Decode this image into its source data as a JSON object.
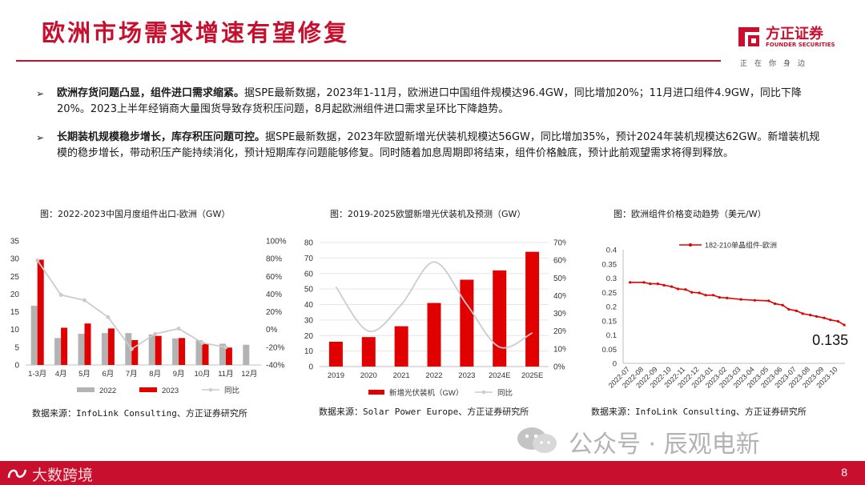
{
  "slide": {
    "title": "欧洲市场需求增速有望修复",
    "page_number": "8"
  },
  "logo": {
    "name_cn": "方正证券",
    "name_en": "FOUNDER SECURITIES",
    "slogan": "正在你身边",
    "color": "#c8102e"
  },
  "bullets": [
    {
      "lead": "欧洲存货问题凸显，组件进口需求缩紧。",
      "text": "据SPE最新数据，2023年1-11月，欧洲进口中国组件规模达96.4GW，同比增加20%；11月进口组件4.9GW，同比下降20%。2023上半年经销商大量囤货导致存货积压问题，8月起欧洲组件进口需求呈环比下降趋势。"
    },
    {
      "lead": "长期装机规模稳步增长，库存积压问题可控。",
      "text": "据SPE最新数据，2023年欧盟新增光伏装机规模达56GW，同比增加35%，预计2024年装机规模达62GW。新增装机规模的稳步增长，带动积压产能持续消化，预计短期库存问题能够修复。同时随着加息周期即将结束，组件价格触底，预计此前观望需求将得到释放。"
    }
  ],
  "charts": {
    "c1": {
      "caption": "图：2022-2023中国月度组件出口-欧洲（GW）",
      "source": "数据来源：InfoLink Consulting、方正证券研究所"
    },
    "c2": {
      "caption": "图：2019-2025欧盟新增光伏装机及预测（GW）",
      "source": "数据来源：Solar Power Europe、方正证券研究所"
    },
    "c3": {
      "caption": "图：欧洲组件价格变动趋势（美元/W）",
      "source": "数据来源：InfoLink Consulting、方正证券研究所"
    }
  },
  "chart_data": [
    {
      "type": "bar",
      "title": "图：2022-2023中国月度组件出口-欧洲（GW）",
      "categories": [
        "1-3月",
        "4月",
        "5月",
        "6月",
        "7月",
        "8月",
        "9月",
        "10月",
        "11月",
        "12月"
      ],
      "series": [
        {
          "name": "2022",
          "kind": "bar",
          "color": "#b3b3b3",
          "values": [
            16.7,
            7.6,
            8.8,
            9.0,
            9.0,
            8.6,
            7.5,
            7.0,
            6.0,
            5.7
          ]
        },
        {
          "name": "2023",
          "kind": "bar",
          "color": "#e00000",
          "values": [
            29.7,
            10.5,
            11.7,
            10.3,
            7.0,
            8.2,
            7.6,
            6.0,
            4.9,
            null
          ]
        },
        {
          "name": "同比",
          "kind": "line",
          "axis": "right",
          "color": "#cccccc",
          "values": [
            78,
            39,
            33,
            14,
            -22,
            -5,
            1,
            -15,
            -20,
            null
          ]
        }
      ],
      "left_axis": {
        "min": 0,
        "max": 35,
        "ticks": [
          "0",
          "5",
          "10",
          "15",
          "20",
          "25",
          "30",
          "35"
        ]
      },
      "right_axis": {
        "min": -40,
        "max": 100,
        "ticks": [
          "-40%",
          "-20%",
          "0%",
          "20%",
          "40%",
          "60%",
          "80%",
          "100%"
        ]
      },
      "legend_position": "bottom"
    },
    {
      "type": "bar",
      "title": "图：2019-2025欧盟新增光伏装机及预测（GW）",
      "categories": [
        "2019",
        "2020",
        "2021",
        "2022",
        "2023",
        "2024E",
        "2025E"
      ],
      "series": [
        {
          "name": "新增光伏装机（GW）",
          "kind": "bar",
          "color": "#e00000",
          "values": [
            16,
            19,
            26,
            41,
            56,
            62,
            74
          ]
        },
        {
          "name": "同比",
          "kind": "line",
          "axis": "right",
          "color": "#cccccc",
          "values": [
            45,
            20,
            35,
            59,
            35,
            11,
            19
          ]
        }
      ],
      "left_axis": {
        "min": 0,
        "max": 80,
        "ticks": [
          "0",
          "10",
          "20",
          "30",
          "40",
          "50",
          "60",
          "70",
          "80"
        ]
      },
      "right_axis": {
        "min": 0,
        "max": 70,
        "ticks": [
          "0%",
          "10%",
          "20%",
          "30%",
          "40%",
          "50%",
          "60%",
          "70%"
        ]
      },
      "legend_position": "bottom"
    },
    {
      "type": "line",
      "title": "图：欧洲组件价格变动趋势（美元/W）",
      "x": [
        "2022-07",
        "2022-08",
        "2022-09",
        "2022-10",
        "2022-11",
        "2022-12",
        "2023-01",
        "2023-02",
        "2023-03",
        "2023-04",
        "2023-05",
        "2023-06",
        "2023-07",
        "2023-08",
        "2023-09",
        "2023-10"
      ],
      "series": [
        {
          "name": "182-210单晶组件-欧洲",
          "color": "#e00000",
          "points": [
            [
              "2022-07",
              0.285
            ],
            [
              "2022-08",
              0.285
            ],
            [
              "2022-08",
              0.28
            ],
            [
              "2022-09",
              0.28
            ],
            [
              "2022-09",
              0.275
            ],
            [
              "2022-10",
              0.27
            ],
            [
              "2022-10",
              0.262
            ],
            [
              "2022-11",
              0.26
            ],
            [
              "2022-11",
              0.25
            ],
            [
              "2022-12",
              0.248
            ],
            [
              "2022-12",
              0.24
            ],
            [
              "2023-01",
              0.24
            ],
            [
              "2023-01",
              0.232
            ],
            [
              "2023-02",
              0.23
            ],
            [
              "2023-03",
              0.225
            ],
            [
              "2023-04",
              0.222
            ],
            [
              "2023-05",
              0.22
            ],
            [
              "2023-05",
              0.21
            ],
            [
              "2023-06",
              0.205
            ],
            [
              "2023-06",
              0.19
            ],
            [
              "2023-07",
              0.185
            ],
            [
              "2023-07",
              0.175
            ],
            [
              "2023-08",
              0.17
            ],
            [
              "2023-08",
              0.165
            ],
            [
              "2023-09",
              0.16
            ],
            [
              "2023-09",
              0.153
            ],
            [
              "2023-10",
              0.148
            ],
            [
              "2023-10",
              0.135
            ]
          ]
        }
      ],
      "y_axis": {
        "min": 0,
        "max": 0.4,
        "ticks": [
          "0",
          "0.05",
          "0.1",
          "0.15",
          "0.2",
          "0.25",
          "0.3",
          "0.35",
          "0.4"
        ]
      },
      "annotation": "0.135",
      "legend_position": "top"
    }
  ],
  "watermark": {
    "text": "公众号 · 辰观电新"
  },
  "footer": {
    "brand": "大数跨境",
    "color": "#c8102e"
  }
}
